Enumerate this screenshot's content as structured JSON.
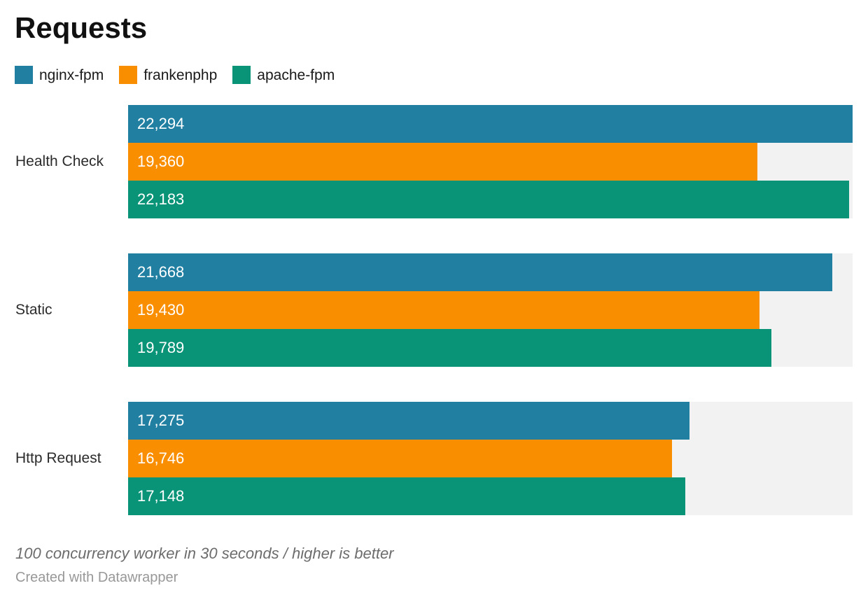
{
  "title": "Requests",
  "legend": {
    "items": [
      {
        "label": "nginx-fpm"
      },
      {
        "label": "frankenphp"
      },
      {
        "label": "apache-fpm"
      }
    ]
  },
  "colors": {
    "nginx_fpm": "#2180a2",
    "frankenphp": "#f98e00",
    "apache_fpm": "#099377",
    "track": "#f2f2f2",
    "value_label": "#ffffff"
  },
  "chart_data": {
    "type": "bar",
    "orientation": "horizontal",
    "title": "Requests",
    "categories": [
      "Health Check",
      "Static",
      "Http Request"
    ],
    "series": [
      {
        "name": "nginx-fpm",
        "color": "#2180a2",
        "values": [
          22294,
          21668,
          17275
        ],
        "labels": [
          "22,294",
          "21,668",
          "17,275"
        ]
      },
      {
        "name": "frankenphp",
        "color": "#f98e00",
        "values": [
          19360,
          19430,
          16746
        ],
        "labels": [
          "19,360",
          "19,430",
          "16,746"
        ]
      },
      {
        "name": "apache-fpm",
        "color": "#099377",
        "values": [
          22183,
          19789,
          17148
        ],
        "labels": [
          "22,183",
          "19,789",
          "17,148"
        ]
      }
    ],
    "xmin": 0,
    "xmax": 22294,
    "grid": false,
    "legend_position": "top",
    "value_labels_inside": true
  },
  "footer": {
    "note": "100 concurrency worker in 30 seconds / higher is better",
    "attribution": "Created with Datawrapper"
  }
}
